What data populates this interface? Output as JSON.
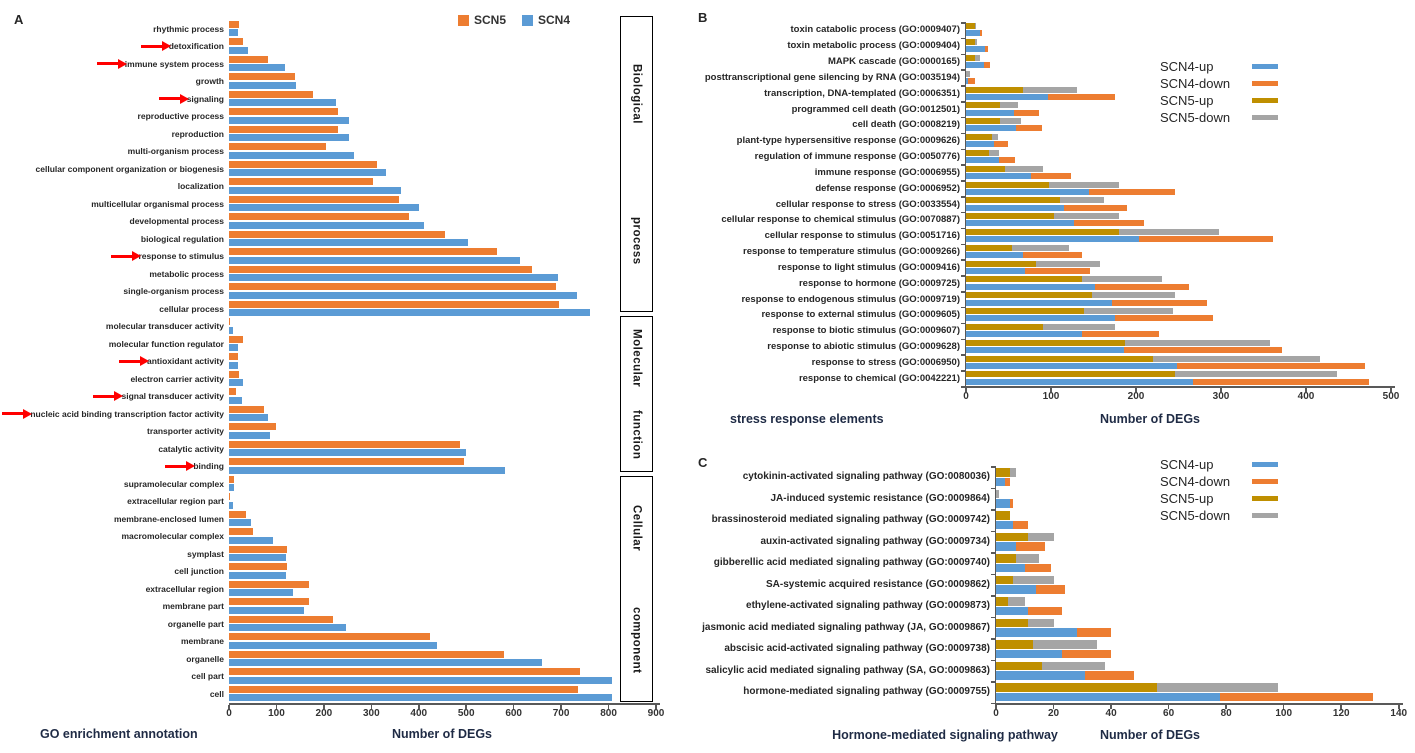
{
  "panels": {
    "a": {
      "letter": "A",
      "left_title": "GO enrichment annotation",
      "xlabel": "Number of DEGs"
    },
    "b": {
      "letter": "B",
      "left_title": "stress response elements",
      "xlabel": "Number of DEGs"
    },
    "c": {
      "letter": "C",
      "left_title": "Hormone-mediated signaling pathway",
      "xlabel": "Number of DEGs"
    }
  },
  "colors": {
    "scn5": "#ED7D31",
    "scn4": "#5B9BD5",
    "scn4_up": "#5B9BD5",
    "scn4_down": "#ED7D31",
    "scn5_up": "#BF8F00",
    "scn5_down": "#A5A5A5",
    "arrow": "#FF0000",
    "axis": "#595959"
  },
  "chart_data": [
    {
      "id": "A",
      "type": "bar",
      "title": "GO enrichment annotation",
      "xlabel": "Number of DEGs",
      "xlim": [
        0,
        900
      ],
      "xticks": [
        0,
        100,
        200,
        300,
        400,
        500,
        600,
        700,
        800,
        900
      ],
      "grid": false,
      "legend_position": "top",
      "legend": [
        {
          "name": "SCN5",
          "color": "#ED7D31"
        },
        {
          "name": "SCN4",
          "color": "#5B9BD5"
        }
      ],
      "groups": [
        {
          "label": "Biological process",
          "from": 0,
          "to": 16
        },
        {
          "label": "Molecular function",
          "from": 17,
          "to": 25
        },
        {
          "label": "Cellular component",
          "from": 26,
          "to": 38
        }
      ],
      "arrow_categories": [
        1,
        2,
        4,
        13,
        19,
        21,
        22,
        25
      ],
      "bar_series": [
        [
          "SCN5"
        ],
        [
          "SCN4"
        ]
      ],
      "categories": [
        "rhythmic process",
        "detoxification",
        "immune system process",
        "growth",
        "signaling",
        "reproductive process",
        "reproduction",
        "multi-organism process",
        "cellular component organization or biogenesis",
        "localization",
        "multicellular organismal process",
        "developmental process",
        "biological regulation",
        "response to stimulus",
        "metabolic process",
        "single-organism process",
        "cellular process",
        "molecular transducer activity",
        "molecular function regulator",
        "antioxidant activity",
        "electron carrier activity",
        "signal transducer activity",
        "nucleic acid binding transcription factor activity",
        "transporter activity",
        "catalytic activity",
        "binding",
        "supramolecular complex",
        "extracellular region part",
        "membrane-enclosed lumen",
        "macromolecular complex",
        "symplast",
        "cell junction",
        "extracellular region",
        "membrane part",
        "organelle part",
        "membrane",
        "organelle",
        "cell part",
        "cell"
      ],
      "series": [
        {
          "name": "SCN5",
          "color": "#ED7D31",
          "values": [
            22,
            30,
            83,
            140,
            178,
            229,
            230,
            204,
            311,
            304,
            359,
            380,
            455,
            564,
            638,
            690,
            695,
            2,
            30,
            18,
            22,
            15,
            73,
            99,
            487,
            495,
            10,
            3,
            35,
            51,
            122,
            122,
            168,
            168,
            219,
            424,
            580,
            740,
            736
          ]
        },
        {
          "name": "SCN4",
          "color": "#5B9BD5",
          "values": [
            18,
            39,
            119,
            141,
            225,
            252,
            252,
            264,
            331,
            362,
            401,
            410,
            503,
            613,
            694,
            733,
            761,
            9,
            18,
            20,
            29,
            27,
            82,
            87,
            500,
            582,
            10,
            8,
            46,
            93,
            120,
            121,
            135,
            158,
            246,
            438,
            660,
            808,
            808
          ]
        }
      ]
    },
    {
      "id": "B",
      "type": "stacked-bar",
      "title": "stress response elements",
      "xlabel": "Number of DEGs",
      "xlim": [
        0,
        500
      ],
      "xticks": [
        0,
        100,
        200,
        300,
        400,
        500
      ],
      "grid": false,
      "legend_position": "right-top",
      "legend": [
        {
          "name": "SCN4-up",
          "color": "#5B9BD5"
        },
        {
          "name": "SCN4-down",
          "color": "#ED7D31"
        },
        {
          "name": "SCN5-up",
          "color": "#BF8F00"
        },
        {
          "name": "SCN5-down",
          "color": "#A5A5A5"
        }
      ],
      "bar_series": [
        [
          "SCN5-up",
          "SCN5-down"
        ],
        [
          "SCN4-up",
          "SCN4-down"
        ]
      ],
      "categories": [
        "toxin catabolic process (GO:0009407)",
        "toxin metabolic process (GO:0009404)",
        "MAPK cascade (GO:0000165)",
        "posttranscriptional gene silencing by RNA (GO:0035194)",
        "transcription, DNA-templated (GO:0006351)",
        "programmed cell death (GO:0012501)",
        "cell death (GO:0008219)",
        "plant-type hypersensitive response (GO:0009626)",
        "regulation of immune response (GO:0050776)",
        "immune response (GO:0006955)",
        "defense response (GO:0006952)",
        "cellular response to stress (GO:0033554)",
        "cellular response to chemical stimulus (GO:0070887)",
        "cellular response to stimulus (GO:0051716)",
        "response to temperature stimulus (GO:0009266)",
        "response to light stimulus (GO:0009416)",
        "response to hormone (GO:0009725)",
        "response to endogenous stimulus (GO:0009719)",
        "response to external stimulus (GO:0009605)",
        "response to biotic stimulus (GO:0009607)",
        "response to abiotic stimulus (GO:0009628)",
        "response to stress (GO:0006950)",
        "response to chemical (GO:0042221)"
      ],
      "series": [
        {
          "name": "SCN4-up",
          "color": "#5B9BD5",
          "values": [
            16,
            22,
            21,
            2,
            97,
            57,
            59,
            33,
            39,
            76,
            145,
            115,
            127,
            203,
            67,
            69,
            152,
            172,
            175,
            136,
            186,
            248,
            267
          ]
        },
        {
          "name": "SCN4-down",
          "color": "#ED7D31",
          "values": [
            3,
            4,
            7,
            9,
            78,
            29,
            31,
            17,
            19,
            48,
            101,
            74,
            82,
            158,
            70,
            77,
            110,
            111,
            115,
            91,
            186,
            222,
            207
          ]
        },
        {
          "name": "SCN5-up",
          "color": "#BF8F00",
          "values": [
            11,
            11,
            10,
            0,
            67,
            40,
            40,
            31,
            27,
            46,
            98,
            110,
            103,
            180,
            54,
            82,
            136,
            148,
            139,
            90,
            187,
            220,
            246
          ]
        },
        {
          "name": "SCN5-down",
          "color": "#A5A5A5",
          "values": [
            1,
            2,
            7,
            5,
            64,
            21,
            25,
            7,
            12,
            45,
            82,
            52,
            77,
            118,
            67,
            76,
            95,
            98,
            105,
            85,
            171,
            197,
            191
          ]
        }
      ]
    },
    {
      "id": "C",
      "type": "stacked-bar",
      "title": "Hormone-mediated signaling pathway",
      "xlabel": "Number of DEGs",
      "xlim": [
        0,
        140
      ],
      "xticks": [
        0,
        20,
        40,
        60,
        80,
        100,
        120,
        140
      ],
      "grid": false,
      "legend_position": "right-top",
      "legend": [
        {
          "name": "SCN4-up",
          "color": "#5B9BD5"
        },
        {
          "name": "SCN4-down",
          "color": "#ED7D31"
        },
        {
          "name": "SCN5-up",
          "color": "#BF8F00"
        },
        {
          "name": "SCN5-down",
          "color": "#A5A5A5"
        }
      ],
      "bar_series": [
        [
          "SCN5-up",
          "SCN5-down"
        ],
        [
          "SCN4-up",
          "SCN4-down"
        ]
      ],
      "categories": [
        "cytokinin-activated signaling pathway (GO:0080036)",
        "JA-induced systemic resistance (GO:0009864)",
        "brassinosteroid mediated signaling pathway (GO:0009742)",
        "auxin-activated signaling pathway (GO:0009734)",
        "gibberellic acid mediated signaling pathway (GO:0009740)",
        "SA-systemic acquired resistance (GO:0009862)",
        "ethylene-activated signaling pathway (GO:0009873)",
        "jasmonic acid mediated signaling pathway (JA, GO:0009867)",
        "abscisic acid-activated signaling pathway (GO:0009738)",
        "salicylic acid mediated signaling pathway (SA, GO:0009863)",
        "hormone-mediated signaling pathway (GO:0009755)"
      ],
      "series": [
        {
          "name": "SCN4-up",
          "color": "#5B9BD5",
          "values": [
            3,
            5,
            6,
            7,
            10,
            14,
            11,
            28,
            23,
            31,
            78
          ]
        },
        {
          "name": "SCN4-down",
          "color": "#ED7D31",
          "values": [
            2,
            1,
            5,
            10,
            9,
            10,
            12,
            12,
            17,
            17,
            53
          ]
        },
        {
          "name": "SCN5-up",
          "color": "#BF8F00",
          "values": [
            5,
            0,
            5,
            11,
            7,
            6,
            4,
            11,
            13,
            16,
            56
          ]
        },
        {
          "name": "SCN5-down",
          "color": "#A5A5A5",
          "values": [
            2,
            1,
            0,
            9,
            8,
            14,
            6,
            9,
            22,
            22,
            42
          ]
        }
      ]
    }
  ]
}
